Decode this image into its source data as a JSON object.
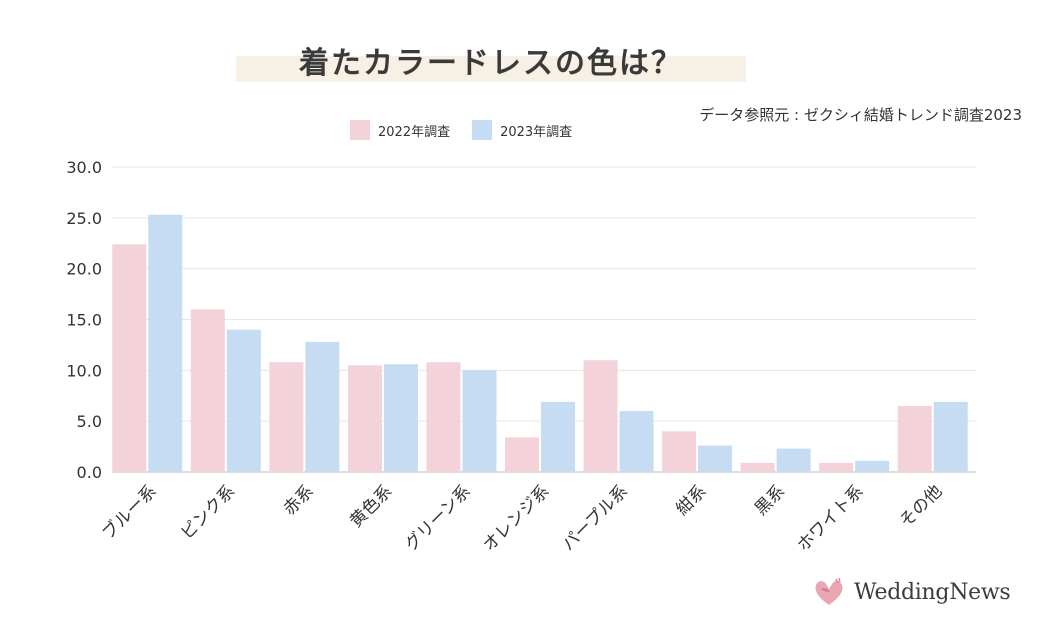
{
  "title": "着たカラードレスの色は？",
  "source": "データ参照元 : ゼクシィ結婚トレンド調査2023",
  "logo_text": "WeddingNews",
  "colors": {
    "series_2022": "#f3d2d9",
    "series_2023": "#c5dcf2",
    "grid": "#e6e6e6",
    "title_band": "#f6f1e4"
  },
  "chart_data": {
    "type": "bar",
    "title": "着たカラードレスの色は？",
    "xlabel": "",
    "ylabel": "",
    "ylim": [
      0,
      30
    ],
    "yticks": [
      "0.0",
      "5.0",
      "10.0",
      "15.0",
      "20.0",
      "25.0",
      "30.0"
    ],
    "grid": true,
    "legend_position": "top-center",
    "categories": [
      "ブルー系",
      "ピンク系",
      "赤系",
      "黄色系",
      "グリーン系",
      "オレンジ系",
      "パープル系",
      "紺系",
      "黒系",
      "ホワイト系",
      "その他"
    ],
    "series": [
      {
        "name": "2022年調査",
        "values": [
          22.4,
          16.0,
          10.8,
          10.5,
          10.8,
          3.4,
          11.0,
          4.0,
          0.9,
          0.9,
          6.5
        ]
      },
      {
        "name": "2023年調査",
        "values": [
          25.3,
          14.0,
          12.8,
          10.6,
          10.0,
          6.9,
          6.0,
          2.6,
          2.3,
          1.1,
          6.9
        ]
      }
    ]
  }
}
